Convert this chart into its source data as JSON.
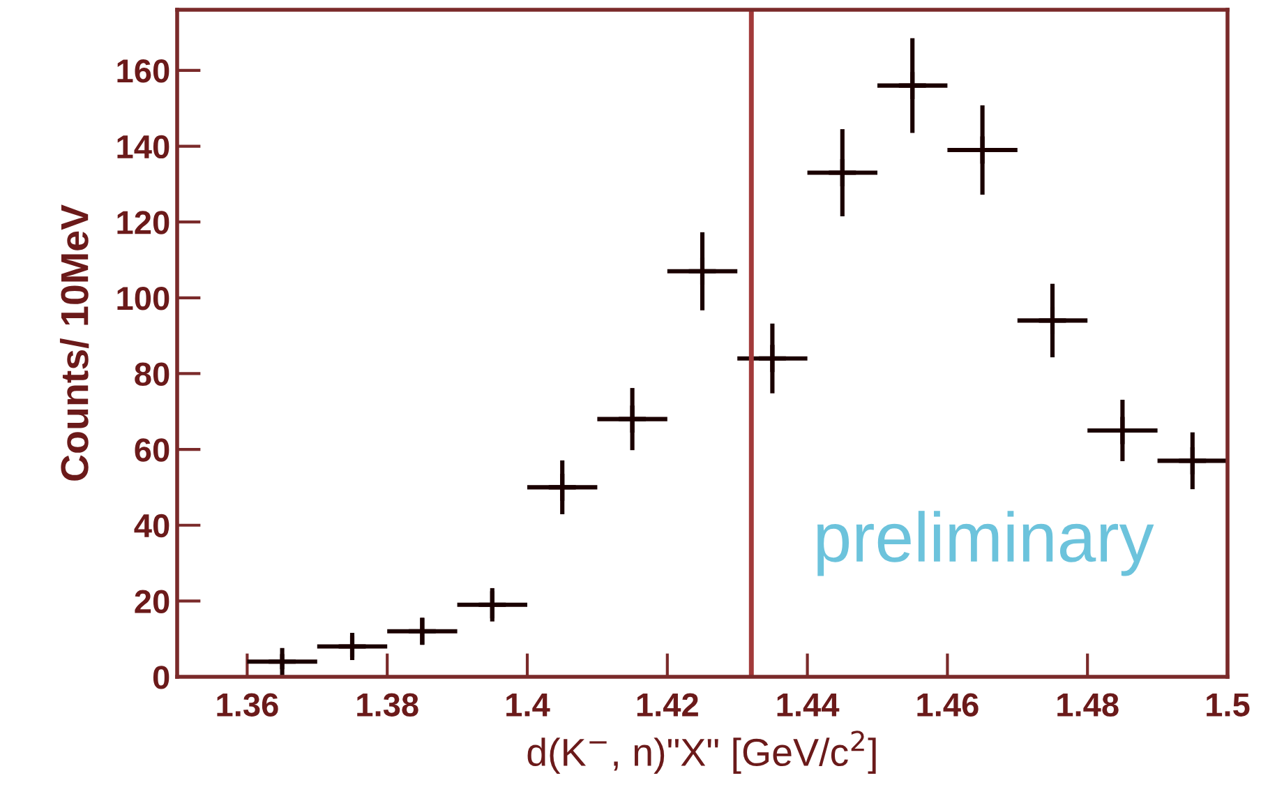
{
  "chart_data": {
    "type": "scatter",
    "xlabel": "d(K$^{−}$, n)\"X\" [GeV/c$^{2}$]",
    "ylabel": "Counts/ 10MeV",
    "x": [
      1.365,
      1.375,
      1.385,
      1.395,
      1.405,
      1.415,
      1.425,
      1.435,
      1.445,
      1.455,
      1.465,
      1.475,
      1.485,
      1.495
    ],
    "series": [
      {
        "color": "#1a0000",
        "values": [
          4,
          8,
          12,
          19,
          50,
          68,
          107,
          84,
          133,
          156,
          139,
          94,
          65,
          57
        ],
        "errors": [
          2,
          2.8,
          3.5,
          4.4,
          7.1,
          8.2,
          10.3,
          9.2,
          11.5,
          12.5,
          11.8,
          9.7,
          8.1,
          7.5
        ],
        "xerrors": [
          0.005,
          0.005,
          0.005,
          0.005,
          0.005,
          0.005,
          0.005,
          0.005,
          0.005,
          0.005,
          0.005,
          0.005,
          0.005,
          0.005
        ]
      }
    ],
    "marker": "cross",
    "xlim": [
      1.35,
      1.5
    ],
    "xticks": [
      1.36,
      1.38,
      {
        "value": 1.4,
        "label": "1.4"
      },
      1.42,
      1.44,
      1.46,
      1.48,
      {
        "value": 1.5,
        "label": "1.5"
      }
    ],
    "ylim": [
      0,
      176
    ],
    "yticks": [
      0,
      20,
      40,
      60,
      80,
      100,
      120,
      140,
      160
    ],
    "ref_lines": [
      {
        "axis": "x",
        "value": 1.432,
        "color": "#a23a3a"
      }
    ],
    "annotations": [
      "preliminary"
    ],
    "grid": false,
    "legend": false
  }
}
